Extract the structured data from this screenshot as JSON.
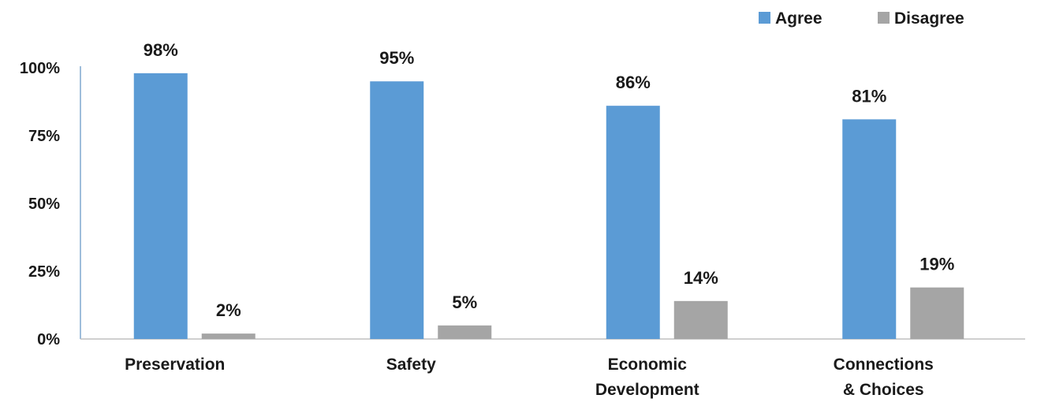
{
  "chart_data": {
    "type": "bar",
    "categories": [
      "Preservation",
      "Safety",
      "Economic Development",
      "Connections & Choices"
    ],
    "category_lines": [
      [
        "Preservation"
      ],
      [
        "Safety"
      ],
      [
        "Economic",
        "Development"
      ],
      [
        "Connections",
        "& Choices"
      ]
    ],
    "series": [
      {
        "name": "Agree",
        "values": [
          98,
          95,
          86,
          81
        ],
        "color": "#5b9bd5"
      },
      {
        "name": "Disagree",
        "values": [
          2,
          5,
          14,
          19
        ],
        "color": "#a5a5a5"
      }
    ],
    "value_suffix": "%",
    "ylim": [
      0,
      100
    ],
    "yticks": [
      0,
      25,
      50,
      75,
      100
    ],
    "ytick_labels": [
      "0%",
      "25%",
      "50%",
      "75%",
      "100%"
    ],
    "legend_position": "top-right",
    "grid": false,
    "title": "",
    "xlabel": "",
    "ylabel": ""
  }
}
